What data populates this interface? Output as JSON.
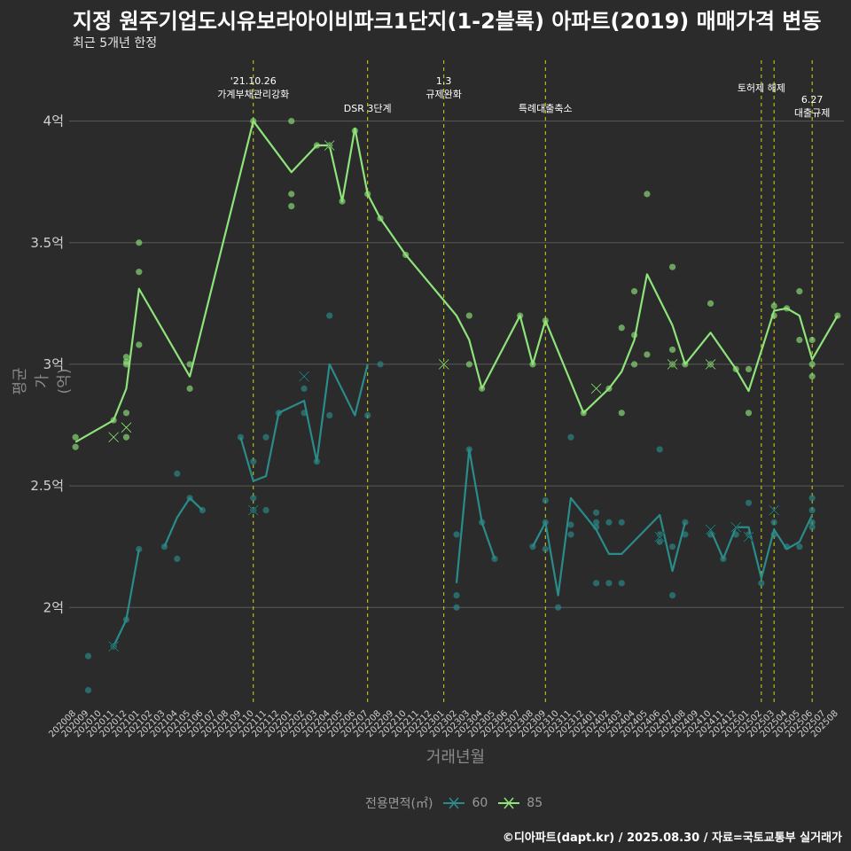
{
  "title": "지정 원주기업도시유보라아이비파크1단지(1-2블록) 아파트(2019) 매매가격 변동",
  "subtitle": "최근 5개년 한정",
  "caption": "©디아파트(dapt.kr) / 2025.08.30 / 자료=국토교통부 실거래가",
  "colors": {
    "background": "#2b2b2b",
    "grid": "#5a5a5a",
    "series_60": "#2a8c8a",
    "series_85": "#8ee37a",
    "event_line": "#d4d41a"
  },
  "chart_data": {
    "type": "line",
    "xlabel": "거래년월",
    "ylabel": "평균가(억)",
    "ylim": [
      1.6,
      4.25
    ],
    "ytick_values": [
      2.0,
      2.5,
      3.0,
      3.5,
      4.0
    ],
    "ytick_labels": [
      "2억",
      "2.5억",
      "3억",
      "3.5억",
      "4억"
    ],
    "x_categories": [
      "202008",
      "202009",
      "202010",
      "202011",
      "202012",
      "202101",
      "202102",
      "202103",
      "202104",
      "202105",
      "202106",
      "202107",
      "202108",
      "202109",
      "202110",
      "202111",
      "202112",
      "202201",
      "202202",
      "202203",
      "202204",
      "202205",
      "202206",
      "202207",
      "202208",
      "202209",
      "202210",
      "202211",
      "202212",
      "202301",
      "202302",
      "202303",
      "202304",
      "202305",
      "202306",
      "202307",
      "202308",
      "202309",
      "202310",
      "202311",
      "202312",
      "202401",
      "202402",
      "202403",
      "202404",
      "202405",
      "202406",
      "202407",
      "202408",
      "202409",
      "202410",
      "202411",
      "202412",
      "202501",
      "202502",
      "202503",
      "202504",
      "202505",
      "202506",
      "202507",
      "202508"
    ],
    "legend_title": "전용면적(㎡)",
    "series": [
      {
        "name": "60",
        "line": [
          [
            "202011",
            1.84
          ],
          [
            "202012",
            1.95
          ],
          [
            "202101",
            2.24
          ],
          null,
          [
            "202103",
            2.25
          ],
          [
            "202104",
            2.37
          ],
          [
            "202105",
            2.45
          ],
          [
            "202106",
            2.4
          ],
          null,
          [
            "202109",
            2.7
          ],
          [
            "202110",
            2.52
          ],
          [
            "202111",
            2.54
          ],
          [
            "202112",
            2.8
          ],
          [
            "202202",
            2.85
          ],
          [
            "202203",
            2.6
          ],
          [
            "202204",
            3.0
          ],
          [
            "202206",
            2.79
          ],
          [
            "202207",
            3.0
          ],
          null,
          [
            "202302",
            2.1
          ],
          [
            "202303",
            2.65
          ],
          [
            "202304",
            2.35
          ],
          [
            "202305",
            2.2
          ],
          null,
          [
            "202308",
            2.25
          ],
          [
            "202309",
            2.35
          ],
          [
            "202310",
            2.05
          ],
          [
            "202311",
            2.45
          ],
          [
            "202401",
            2.32
          ],
          [
            "202402",
            2.22
          ],
          [
            "202403",
            2.22
          ],
          [
            "202406",
            2.38
          ],
          [
            "202407",
            2.15
          ],
          [
            "202408",
            2.35
          ],
          null,
          [
            "202410",
            2.32
          ],
          [
            "202411",
            2.2
          ],
          [
            "202412",
            2.33
          ],
          [
            "202501",
            2.33
          ],
          [
            "202502",
            2.12
          ],
          [
            "202503",
            2.32
          ],
          [
            "202504",
            2.24
          ],
          [
            "202505",
            2.27
          ],
          [
            "202506",
            2.38
          ]
        ],
        "points": [
          [
            "202009",
            1.8
          ],
          [
            "202009",
            1.66
          ],
          [
            "202011",
            1.84
          ],
          [
            "202012",
            1.95
          ],
          [
            "202101",
            2.24
          ],
          [
            "202103",
            2.25
          ],
          [
            "202104",
            2.55
          ],
          [
            "202104",
            2.2
          ],
          [
            "202105",
            2.45
          ],
          [
            "202106",
            2.4
          ],
          [
            "202109",
            2.7
          ],
          [
            "202110",
            2.6
          ],
          [
            "202110",
            2.45
          ],
          [
            "202110",
            2.4
          ],
          [
            "202111",
            2.7
          ],
          [
            "202111",
            2.4
          ],
          [
            "202112",
            2.8
          ],
          [
            "202202",
            2.8
          ],
          [
            "202202",
            2.9
          ],
          [
            "202203",
            2.6
          ],
          [
            "202204",
            3.2
          ],
          [
            "202204",
            2.79
          ],
          [
            "202207",
            2.79
          ],
          [
            "202208",
            3.0
          ],
          [
            "202302",
            2.3
          ],
          [
            "202302",
            2.05
          ],
          [
            "202302",
            2.0
          ],
          [
            "202303",
            2.65
          ],
          [
            "202304",
            2.35
          ],
          [
            "202305",
            2.2
          ],
          [
            "202308",
            2.25
          ],
          [
            "202309",
            2.44
          ],
          [
            "202309",
            2.35
          ],
          [
            "202309",
            2.24
          ],
          [
            "202310",
            2.0
          ],
          [
            "202311",
            2.7
          ],
          [
            "202311",
            2.34
          ],
          [
            "202311",
            2.3
          ],
          [
            "202401",
            2.39
          ],
          [
            "202401",
            2.35
          ],
          [
            "202401",
            2.33
          ],
          [
            "202401",
            2.1
          ],
          [
            "202402",
            2.35
          ],
          [
            "202402",
            2.1
          ],
          [
            "202403",
            2.35
          ],
          [
            "202403",
            2.1
          ],
          [
            "202406",
            2.65
          ],
          [
            "202406",
            2.3
          ],
          [
            "202406",
            2.27
          ],
          [
            "202407",
            2.25
          ],
          [
            "202407",
            2.05
          ],
          [
            "202408",
            2.35
          ],
          [
            "202408",
            2.3
          ],
          [
            "202410",
            2.3
          ],
          [
            "202411",
            2.2
          ],
          [
            "202412",
            2.3
          ],
          [
            "202501",
            2.43
          ],
          [
            "202501",
            2.3
          ],
          [
            "202502",
            2.1
          ],
          [
            "202503",
            2.35
          ],
          [
            "202503",
            2.3
          ],
          [
            "202504",
            2.25
          ],
          [
            "202505",
            2.25
          ],
          [
            "202506",
            2.45
          ],
          [
            "202506",
            2.4
          ],
          [
            "202506",
            2.35
          ],
          [
            "202506",
            2.33
          ]
        ],
        "markers": [
          [
            "202011",
            1.84
          ],
          [
            "202110",
            2.4
          ],
          [
            "202202",
            2.95
          ],
          [
            "202406",
            2.29
          ],
          [
            "202410",
            2.32
          ],
          [
            "202412",
            2.33
          ],
          [
            "202501",
            2.29
          ],
          [
            "202503",
            2.4
          ]
        ]
      },
      {
        "name": "85",
        "line": [
          [
            "202008",
            2.68
          ],
          [
            "202011",
            2.77
          ],
          [
            "202012",
            2.9
          ],
          [
            "202101",
            3.31
          ],
          [
            "202105",
            2.95
          ],
          [
            "202110",
            4.0
          ],
          [
            "202201",
            3.79
          ],
          [
            "202203",
            3.9
          ],
          [
            "202204",
            3.9
          ],
          [
            "202205",
            3.67
          ],
          [
            "202206",
            3.97
          ],
          [
            "202207",
            3.7
          ],
          [
            "202208",
            3.6
          ],
          [
            "202210",
            3.45
          ],
          [
            "202302",
            3.2
          ],
          [
            "202303",
            3.1
          ],
          [
            "202304",
            2.9
          ],
          [
            "202307",
            3.2
          ],
          [
            "202308",
            3.0
          ],
          [
            "202309",
            3.18
          ],
          [
            "202312",
            2.8
          ],
          [
            "202401",
            2.85
          ],
          [
            "202402",
            2.9
          ],
          [
            "202403",
            2.97
          ],
          [
            "202404",
            3.1
          ],
          [
            "202405",
            3.37
          ],
          [
            "202407",
            3.16
          ],
          [
            "202408",
            3.0
          ],
          [
            "202410",
            3.13
          ],
          [
            "202412",
            2.98
          ],
          [
            "202501",
            2.89
          ],
          [
            "202503",
            3.22
          ],
          [
            "202504",
            3.23
          ],
          [
            "202505",
            3.2
          ],
          [
            "202506",
            3.02
          ],
          [
            "202508",
            3.2
          ]
        ],
        "points": [
          [
            "202008",
            2.7
          ],
          [
            "202008",
            2.66
          ],
          [
            "202011",
            2.77
          ],
          [
            "202012",
            3.03
          ],
          [
            "202012",
            3.01
          ],
          [
            "202012",
            3.0
          ],
          [
            "202012",
            2.8
          ],
          [
            "202012",
            2.7
          ],
          [
            "202101",
            3.5
          ],
          [
            "202101",
            3.38
          ],
          [
            "202101",
            3.08
          ],
          [
            "202105",
            3.0
          ],
          [
            "202105",
            2.9
          ],
          [
            "202110",
            4.0
          ],
          [
            "202201",
            4.0
          ],
          [
            "202201",
            3.7
          ],
          [
            "202201",
            3.65
          ],
          [
            "202203",
            3.9
          ],
          [
            "202204",
            3.9
          ],
          [
            "202205",
            3.67
          ],
          [
            "202206",
            3.96
          ],
          [
            "202207",
            3.7
          ],
          [
            "202208",
            3.6
          ],
          [
            "202210",
            3.45
          ],
          [
            "202303",
            3.2
          ],
          [
            "202303",
            3.0
          ],
          [
            "202304",
            2.9
          ],
          [
            "202307",
            3.2
          ],
          [
            "202308",
            3.0
          ],
          [
            "202309",
            3.18
          ],
          [
            "202312",
            2.8
          ],
          [
            "202402",
            2.9
          ],
          [
            "202403",
            3.15
          ],
          [
            "202403",
            2.8
          ],
          [
            "202404",
            3.3
          ],
          [
            "202404",
            3.12
          ],
          [
            "202404",
            3.0
          ],
          [
            "202405",
            3.7
          ],
          [
            "202405",
            3.04
          ],
          [
            "202407",
            3.4
          ],
          [
            "202407",
            3.06
          ],
          [
            "202407",
            3.0
          ],
          [
            "202408",
            3.0
          ],
          [
            "202410",
            3.25
          ],
          [
            "202410",
            3.0
          ],
          [
            "202412",
            2.98
          ],
          [
            "202501",
            2.98
          ],
          [
            "202501",
            2.8
          ],
          [
            "202503",
            3.24
          ],
          [
            "202503",
            3.2
          ],
          [
            "202504",
            3.23
          ],
          [
            "202505",
            3.3
          ],
          [
            "202505",
            3.1
          ],
          [
            "202506",
            3.1
          ],
          [
            "202506",
            3.0
          ],
          [
            "202506",
            2.95
          ],
          [
            "202508",
            3.2
          ]
        ],
        "markers": [
          [
            "202011",
            2.7
          ],
          [
            "202012",
            2.74
          ],
          [
            "202204",
            3.9
          ],
          [
            "202301",
            3.0
          ],
          [
            "202401",
            2.9
          ],
          [
            "202407",
            3.0
          ],
          [
            "202410",
            3.0
          ]
        ]
      }
    ],
    "events": [
      {
        "x": "202110",
        "label": [
          "'21.10.26",
          "가계부채관리강화"
        ]
      },
      {
        "x": "202207",
        "label": [
          "DSR 3단계"
        ]
      },
      {
        "x": "202301",
        "label": [
          "1.3",
          "규제완화"
        ]
      },
      {
        "x": "202309",
        "label": [
          "특례대출축소"
        ]
      },
      {
        "x": "202502",
        "label": [
          "토허제 해제"
        ]
      },
      {
        "x": "202503",
        "label": []
      },
      {
        "x": "202506",
        "label": [
          "6.27",
          "대출규제"
        ]
      }
    ]
  }
}
